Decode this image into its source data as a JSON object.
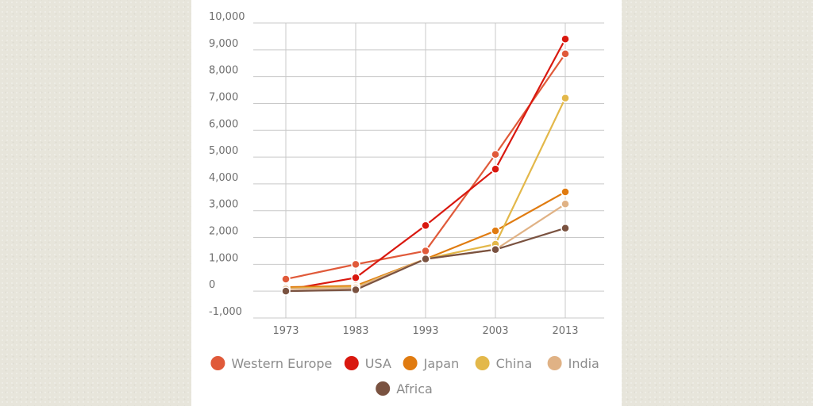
{
  "chart_data": {
    "type": "line",
    "title": "",
    "xlabel": "",
    "ylabel": "",
    "x": [
      "1973",
      "1983",
      "1993",
      "2003",
      "2013"
    ],
    "ylim": [
      -1000,
      10000
    ],
    "yticks": [
      -1000,
      0,
      1000,
      2000,
      3000,
      4000,
      5000,
      6000,
      7000,
      8000,
      9000,
      10000
    ],
    "ytick_labels": [
      "-1,000",
      "0",
      "1,000",
      "2,000",
      "3,000",
      "4,000",
      "5,000",
      "6,000",
      "7,000",
      "8,000",
      "9,000",
      "10,000"
    ],
    "grid": true,
    "legend_position": "bottom",
    "series": [
      {
        "name": "Western Europe",
        "color": "#e05a3a",
        "values": [
          450,
          1000,
          1500,
          5100,
          8850
        ]
      },
      {
        "name": "USA",
        "color": "#d9180f",
        "values": [
          50,
          500,
          2450,
          4550,
          9400
        ]
      },
      {
        "name": "Japan",
        "color": "#e07b10",
        "values": [
          150,
          200,
          1200,
          2250,
          3700
        ]
      },
      {
        "name": "China",
        "color": "#e3b84a",
        "values": [
          100,
          150,
          1200,
          1750,
          7200
        ]
      },
      {
        "name": "India",
        "color": "#e0b285",
        "values": [
          80,
          120,
          1200,
          1550,
          3250
        ]
      },
      {
        "name": "Africa",
        "color": "#7a5240",
        "values": [
          0,
          50,
          1200,
          1550,
          2350
        ]
      }
    ]
  }
}
